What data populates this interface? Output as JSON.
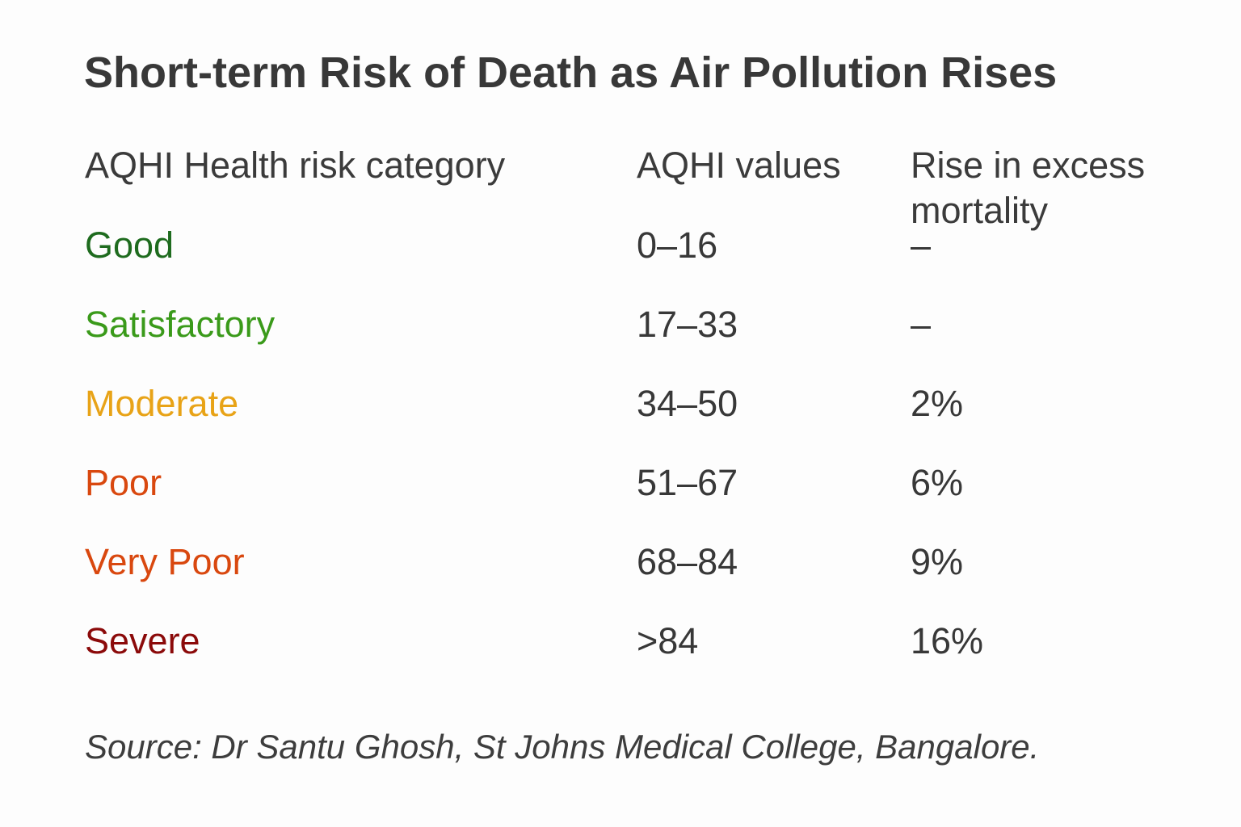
{
  "title": "Short-term Risk of Death as Air Pollution Rises",
  "table": {
    "headers": {
      "category": "AQHI Health risk category",
      "values": "AQHI values",
      "mortality": "Rise in excess mortality"
    },
    "rows": [
      {
        "category": "Good",
        "values": "0–16",
        "mortality": "–",
        "color": "#1e6b1e"
      },
      {
        "category": "Satisfactory",
        "values": "17–33",
        "mortality": "–",
        "color": "#3a9a1a"
      },
      {
        "category": "Moderate",
        "values": "34–50",
        "mortality": "2%",
        "color": "#e8a317"
      },
      {
        "category": "Poor",
        "values": "51–67",
        "mortality": "6%",
        "color": "#d9480f"
      },
      {
        "category": "Very Poor",
        "values": "68–84",
        "mortality": "9%",
        "color": "#d9480f"
      },
      {
        "category": "Severe",
        "values": ">84",
        "mortality": "16%",
        "color": "#8b0a0a"
      }
    ]
  },
  "source": "Source: Dr Santu Ghosh, St Johns Medical College, Bangalore."
}
